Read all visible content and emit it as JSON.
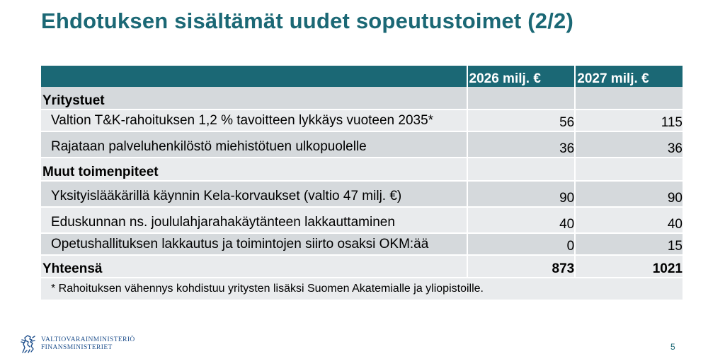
{
  "title": "Ehdotuksen sisältämät uudet sopeutustoimet (2/2)",
  "table": {
    "headers": [
      "",
      "2026 milj. €",
      "2027 milj. €"
    ],
    "sections": [
      {
        "heading": "Yritystuet",
        "items": [
          {
            "label": "Valtion T&K-rahoituksen 1,2 % tavoitteen lykkäys vuoteen 2035*",
            "y2026": "56",
            "y2027": "115"
          },
          {
            "label": "Rajataan palveluhenkilöstö miehistötuen ulkopuolelle",
            "y2026": "36",
            "y2027": "36"
          }
        ]
      },
      {
        "heading": "Muut toimenpiteet",
        "items": [
          {
            "label": "Yksityislääkärillä käynnin Kela-korvaukset (valtio 47 milj. €)",
            "y2026": "90",
            "y2027": "90"
          },
          {
            "label": "Eduskunnan ns. joululahjarahakäytänteen lakkauttaminen",
            "y2026": "40",
            "y2027": "40"
          },
          {
            "label": "Opetushallituksen lakkautus ja toimintojen siirto osaksi OKM:ää",
            "y2026": "0",
            "y2027": "15"
          }
        ]
      }
    ],
    "total": {
      "label": "Yhteensä",
      "y2026": "873",
      "y2027": "1021"
    },
    "footnote": "* Rahoituksen vähennys kohdistuu yritysten lisäksi Suomen Akatemialle ja yliopistoille."
  },
  "footer": {
    "logo_line1": "VALTIOVARAINMINISTERIÖ",
    "logo_line2": "FINANSMINISTERIET",
    "logo_icon": "heraldic-lion-icon",
    "page_number": "5"
  },
  "colors": {
    "accent": "#1b6875",
    "row_light": "#e9ebed",
    "row_dark": "#d5d9dc",
    "logo_blue": "#1e4f8c"
  }
}
